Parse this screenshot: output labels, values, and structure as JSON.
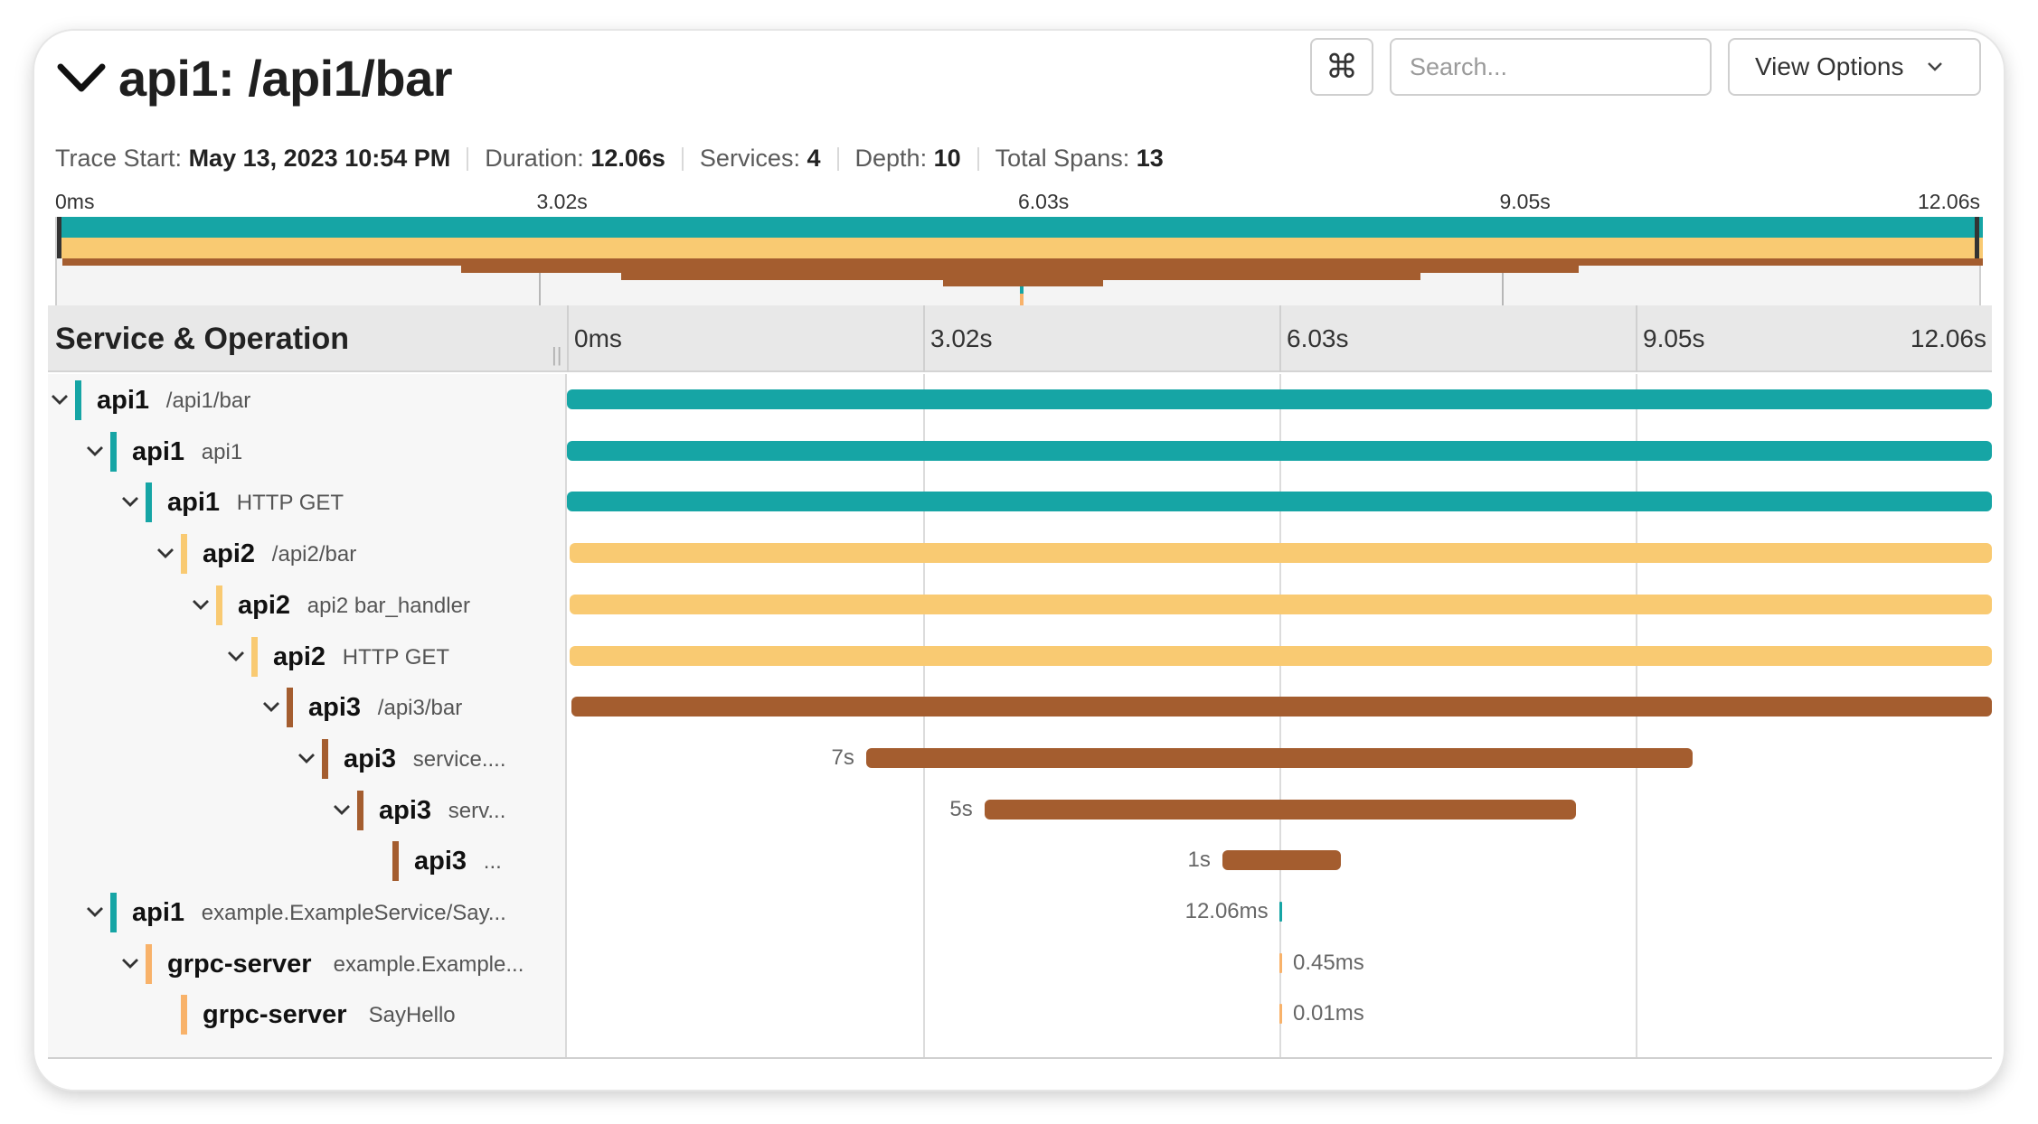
{
  "header": {
    "title": "api1: /api1/bar",
    "command_icon": "⌘",
    "search_placeholder": "Search...",
    "view_options_label": "View Options"
  },
  "summary": {
    "trace_start_label": "Trace Start:",
    "trace_start_value": "May 13, 2023 10:54 PM",
    "duration_label": "Duration:",
    "duration_value": "12.06s",
    "services_label": "Services:",
    "services_value": "4",
    "depth_label": "Depth:",
    "depth_value": "10",
    "total_spans_label": "Total Spans:",
    "total_spans_value": "13"
  },
  "ticks": [
    "0ms",
    "3.02s",
    "6.03s",
    "9.05s",
    "12.06s"
  ],
  "table": {
    "column_title": "Service & Operation"
  },
  "colors": {
    "api1": "#16a5a5",
    "api2": "#f9ca72",
    "api3": "#a45d2f",
    "grpc-server": "#f8b26a"
  },
  "spans": [
    {
      "service": "api1",
      "operation": "/api1/bar",
      "depth": 0,
      "collapsible": true,
      "start": 0,
      "end": 1.0,
      "duration_label": ""
    },
    {
      "service": "api1",
      "operation": "api1",
      "depth": 1,
      "collapsible": true,
      "start": 0,
      "end": 1.0,
      "duration_label": ""
    },
    {
      "service": "api1",
      "operation": "HTTP GET",
      "depth": 2,
      "collapsible": true,
      "start": 0,
      "end": 1.0,
      "duration_label": ""
    },
    {
      "service": "api2",
      "operation": "/api2/bar",
      "depth": 3,
      "collapsible": true,
      "start": 0.002,
      "end": 1.0,
      "duration_label": ""
    },
    {
      "service": "api2",
      "operation": "api2 bar_handler",
      "depth": 4,
      "collapsible": true,
      "start": 0.002,
      "end": 1.0,
      "duration_label": ""
    },
    {
      "service": "api2",
      "operation": "HTTP GET",
      "depth": 5,
      "collapsible": true,
      "start": 0.002,
      "end": 1.0,
      "duration_label": ""
    },
    {
      "service": "api3",
      "operation": "/api3/bar",
      "depth": 6,
      "collapsible": true,
      "start": 0.003,
      "end": 1.0,
      "duration_label": ""
    },
    {
      "service": "api3",
      "operation": "service....",
      "depth": 7,
      "collapsible": true,
      "start": 0.21,
      "end": 0.79,
      "duration_label": "7s"
    },
    {
      "service": "api3",
      "operation": "serv...",
      "depth": 8,
      "collapsible": true,
      "start": 0.293,
      "end": 0.708,
      "duration_label": "5s"
    },
    {
      "service": "api3",
      "operation": "...",
      "depth": 9,
      "collapsible": false,
      "start": 0.46,
      "end": 0.543,
      "duration_label": "1s"
    },
    {
      "service": "api1",
      "operation": "example.ExampleService/Say...",
      "depth": 1,
      "collapsible": true,
      "start": 0.5,
      "end": 0.5015,
      "duration_label": "12.06ms"
    },
    {
      "service": "grpc-server",
      "operation": "example.Example...",
      "depth": 2,
      "collapsible": true,
      "start": 0.5,
      "end": 0.5012,
      "duration_label": "0.45ms"
    },
    {
      "service": "grpc-server",
      "operation": "SayHello",
      "depth": 3,
      "collapsible": false,
      "start": 0.5,
      "end": 0.5012,
      "duration_label": "0.01ms"
    }
  ]
}
